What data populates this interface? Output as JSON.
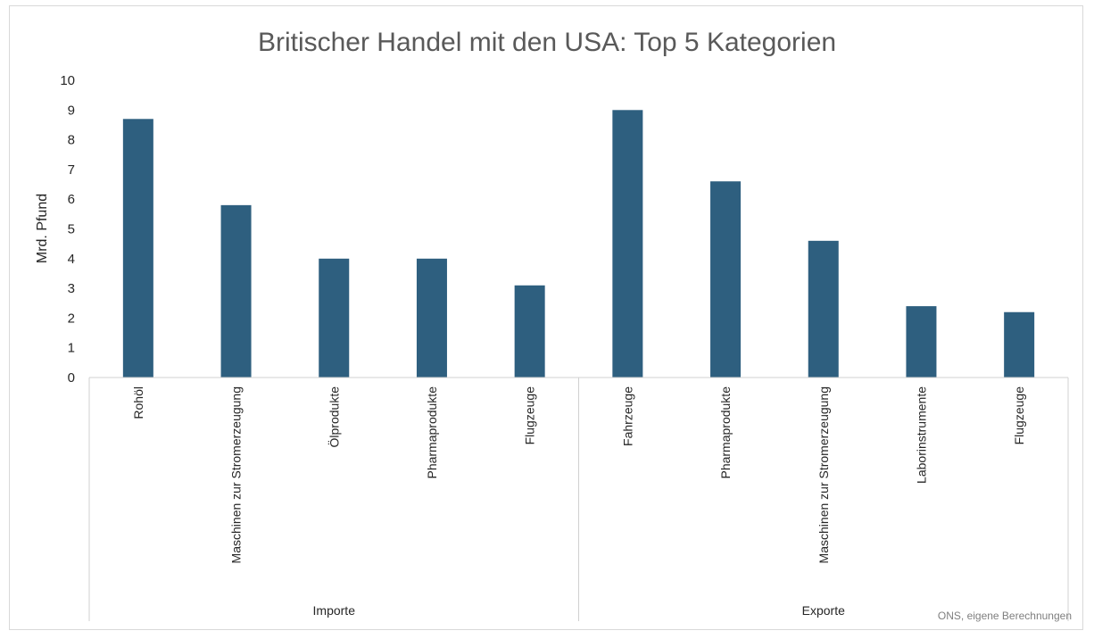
{
  "chart_data": {
    "type": "bar",
    "title": "Britischer Handel mit den USA: Top 5 Kategorien",
    "ylabel": "Mrd. Pfund",
    "xlabel": "",
    "ylim": [
      0,
      10
    ],
    "yticks": [
      "0",
      "1",
      "2",
      "3",
      "4",
      "5",
      "6",
      "7",
      "8",
      "9",
      "10"
    ],
    "grid": false,
    "legend": "none",
    "bar_color": "#2e5f7f",
    "groups": [
      {
        "name": "Importe",
        "categories": [
          "Rohöl",
          "Maschinen zur Stromerzeugung",
          "Ölprodukte",
          "Pharmaprodukte",
          "Flugzeuge"
        ],
        "values": [
          8.7,
          5.8,
          4.0,
          4.0,
          3.1
        ]
      },
      {
        "name": "Exporte",
        "categories": [
          "Fahrzeuge",
          "Pharmaprodukte",
          "Maschinen zur Stromerzeugung",
          "Laborinstrumente",
          "Flugzeuge"
        ],
        "values": [
          9.0,
          6.6,
          4.6,
          2.4,
          2.2
        ]
      }
    ],
    "source_note": "ONS, eigene Berechnungen"
  }
}
